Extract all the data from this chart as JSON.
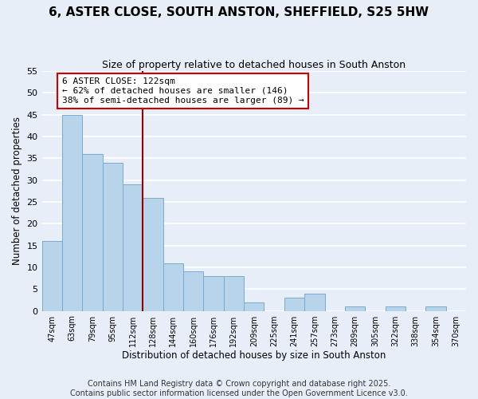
{
  "title": "6, ASTER CLOSE, SOUTH ANSTON, SHEFFIELD, S25 5HW",
  "subtitle": "Size of property relative to detached houses in South Anston",
  "xlabel": "Distribution of detached houses by size in South Anston",
  "ylabel": "Number of detached properties",
  "bar_labels": [
    "47sqm",
    "63sqm",
    "79sqm",
    "95sqm",
    "112sqm",
    "128sqm",
    "144sqm",
    "160sqm",
    "176sqm",
    "192sqm",
    "209sqm",
    "225sqm",
    "241sqm",
    "257sqm",
    "273sqm",
    "289sqm",
    "305sqm",
    "322sqm",
    "338sqm",
    "354sqm",
    "370sqm"
  ],
  "bar_values": [
    16,
    45,
    36,
    34,
    29,
    26,
    11,
    9,
    8,
    8,
    2,
    0,
    3,
    4,
    0,
    1,
    0,
    1,
    0,
    1,
    0
  ],
  "bar_color": "#b8d4ea",
  "bar_edge_color": "#7aaacf",
  "background_color": "#e8eef8",
  "grid_color": "#ffffff",
  "vline_x": 4.5,
  "vline_color": "#990000",
  "annotation_title": "6 ASTER CLOSE: 122sqm",
  "annotation_line1": "← 62% of detached houses are smaller (146)",
  "annotation_line2": "38% of semi-detached houses are larger (89) →",
  "annotation_box_color": "#ffffff",
  "annotation_box_edge": "#cc0000",
  "ylim": [
    0,
    55
  ],
  "yticks": [
    0,
    5,
    10,
    15,
    20,
    25,
    30,
    35,
    40,
    45,
    50,
    55
  ],
  "footer1": "Contains HM Land Registry data © Crown copyright and database right 2025.",
  "footer2": "Contains public sector information licensed under the Open Government Licence v3.0.",
  "title_fontsize": 11,
  "subtitle_fontsize": 9,
  "footer_fontsize": 7
}
